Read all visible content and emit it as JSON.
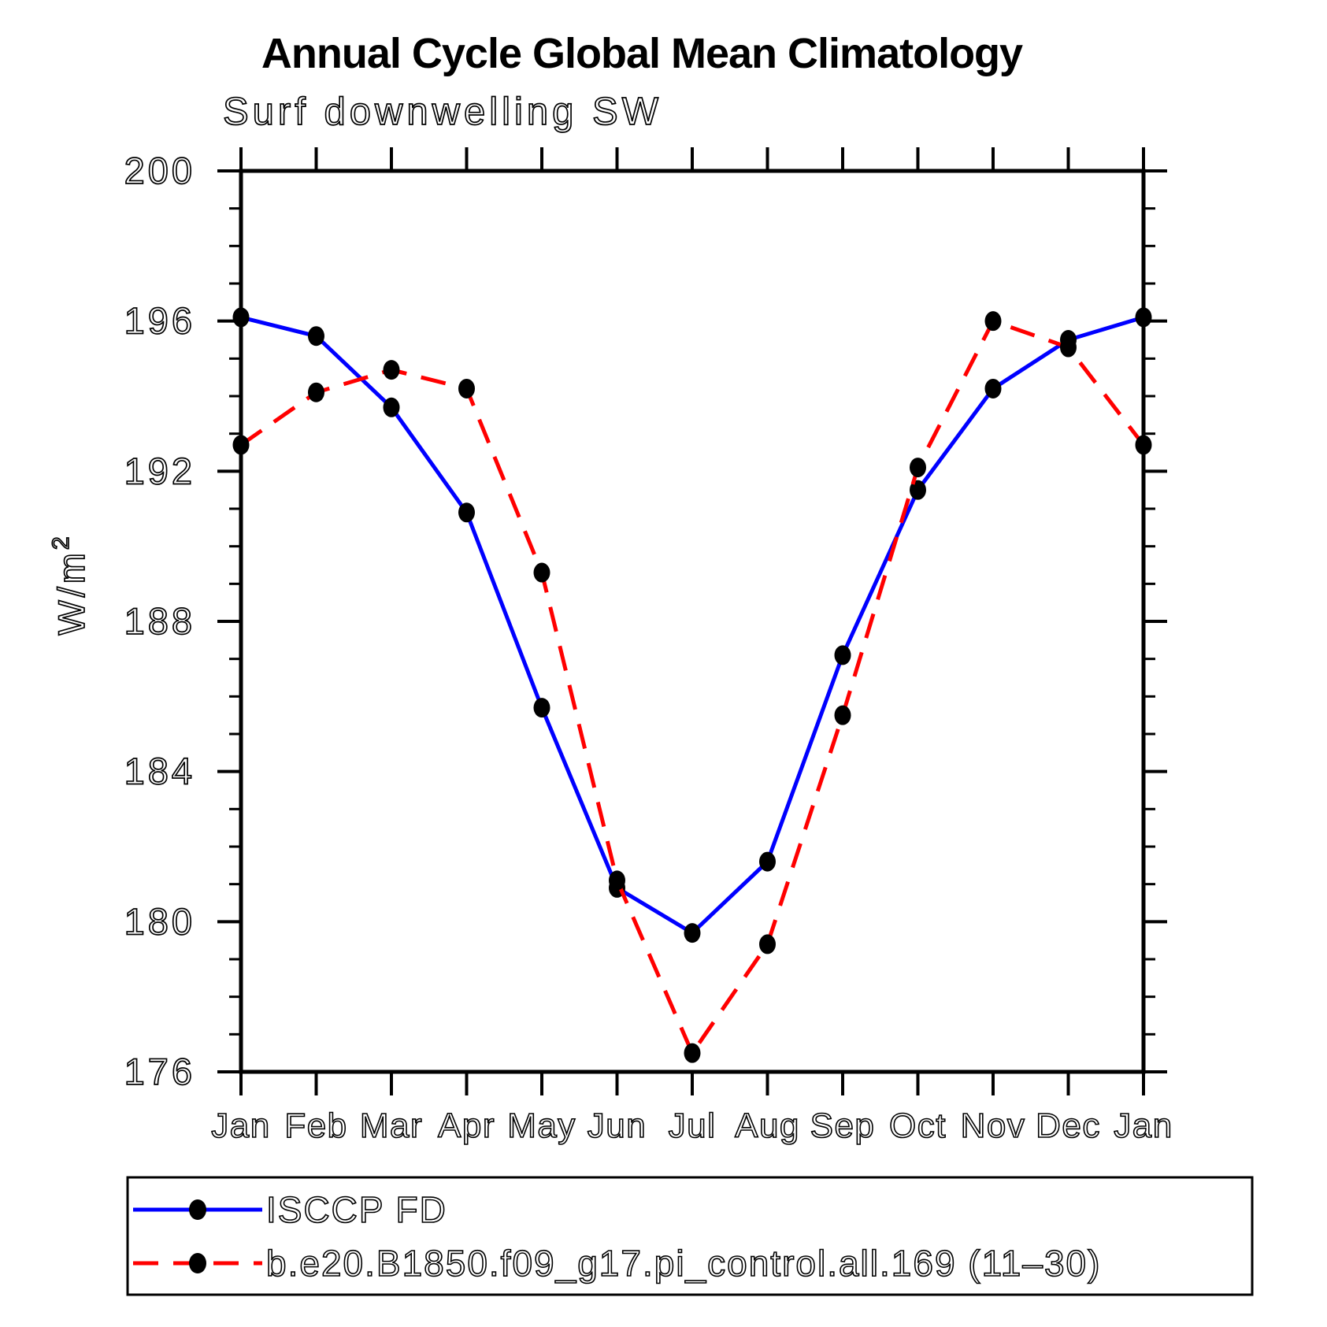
{
  "title": "Annual Cycle Global Mean Climatology",
  "subtitle": "Surf downwelling SW",
  "chart_data": {
    "type": "line",
    "categories": [
      "Jan",
      "Feb",
      "Mar",
      "Apr",
      "May",
      "Jun",
      "Jul",
      "Aug",
      "Sep",
      "Oct",
      "Nov",
      "Dec",
      "Jan"
    ],
    "xlabel": "",
    "ylabel": "W/m²",
    "ylim": [
      176,
      200
    ],
    "yticks": [
      176,
      180,
      184,
      188,
      192,
      196,
      200
    ],
    "ytick_minor_interval": 1,
    "grid": false,
    "axis_color": "#000000",
    "background_color": "#ffffff",
    "legend_position": "bottom-left-box",
    "series": [
      {
        "name": "ISCCP FD",
        "line_color": "#0000ff",
        "line_style": "solid",
        "marker": "filled-circle",
        "marker_color": "#000000",
        "values": [
          196.1,
          195.6,
          193.7,
          190.9,
          185.7,
          180.9,
          179.7,
          181.6,
          187.1,
          191.5,
          194.2,
          195.5,
          196.1
        ]
      },
      {
        "name": "b.e20.B1850.f09_g17.pi_control.all.169 (11–30)",
        "line_color": "#ff0000",
        "line_style": "dashed",
        "marker": "filled-circle",
        "marker_color": "#000000",
        "values": [
          192.7,
          194.1,
          194.7,
          194.2,
          189.3,
          181.1,
          176.5,
          179.4,
          185.5,
          192.1,
          196.0,
          195.3,
          192.7
        ]
      }
    ]
  }
}
